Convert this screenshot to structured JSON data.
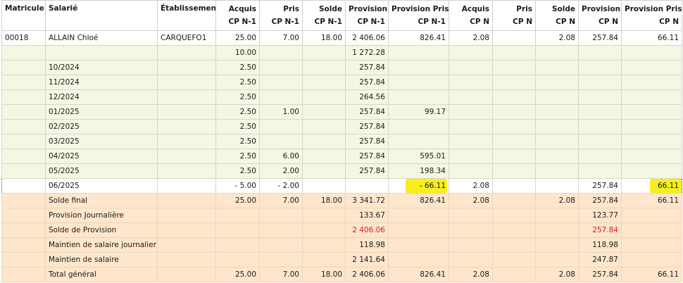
{
  "columns": [
    {
      "id": "matricule",
      "line1": "Matricule",
      "line2": ""
    },
    {
      "id": "salarie",
      "line1": "Salarié",
      "line2": ""
    },
    {
      "id": "etablissement",
      "line1": "Établissement",
      "line2": ""
    },
    {
      "id": "acquis_n1",
      "line1": "Acquis",
      "line2": "CP N-1"
    },
    {
      "id": "pris_n1",
      "line1": "Pris",
      "line2": "CP N-1"
    },
    {
      "id": "solde_n1",
      "line1": "Solde",
      "line2": "CP N-1"
    },
    {
      "id": "provision_n1",
      "line1": "Provision",
      "line2": "CP N-1"
    },
    {
      "id": "provision_prise_n1",
      "line1": "Provision Prise",
      "line2": "CP N-1"
    },
    {
      "id": "acquis_n",
      "line1": "Acquis",
      "line2": "CP N"
    },
    {
      "id": "pris_n",
      "line1": "Pris",
      "line2": "CP N"
    },
    {
      "id": "solde_n",
      "line1": "Solde",
      "line2": "CP N"
    },
    {
      "id": "provision_n",
      "line1": "Provision",
      "line2": "CP N"
    },
    {
      "id": "provision_prise_n",
      "line1": "Provision Prise",
      "line2": "CP N"
    }
  ],
  "rows": [
    {
      "type": "main",
      "cells": [
        "00018",
        "ALLAIN Chloé",
        "CARQUEFO1",
        "25.00",
        "7.00",
        "18.00",
        "2 406.06",
        "826.41",
        "2.08",
        "",
        "2.08",
        "257.84",
        "66.11"
      ]
    },
    {
      "type": "month",
      "cells": [
        "",
        "",
        "",
        "10.00",
        "",
        "",
        "1 272.28",
        "",
        "",
        "",
        "",
        "",
        ""
      ]
    },
    {
      "type": "month",
      "cells": [
        "",
        "10/2024",
        "",
        "2.50",
        "",
        "",
        "257.84",
        "",
        "",
        "",
        "",
        "",
        ""
      ]
    },
    {
      "type": "month",
      "cells": [
        "",
        "11/2024",
        "",
        "2.50",
        "",
        "",
        "257.84",
        "",
        "",
        "",
        "",
        "",
        ""
      ]
    },
    {
      "type": "month",
      "cells": [
        "",
        "12/2024",
        "",
        "2.50",
        "",
        "",
        "264.56",
        "",
        "",
        "",
        "",
        "",
        ""
      ]
    },
    {
      "type": "month",
      "cells": [
        "",
        "01/2025",
        "",
        "2.50",
        "1.00",
        "",
        "257.84",
        "99.17",
        "",
        "",
        "",
        "",
        ""
      ]
    },
    {
      "type": "month",
      "cells": [
        "",
        "02/2025",
        "",
        "2.50",
        "",
        "",
        "257.84",
        "",
        "",
        "",
        "",
        "",
        ""
      ]
    },
    {
      "type": "month",
      "cells": [
        "",
        "03/2025",
        "",
        "2.50",
        "",
        "",
        "257.84",
        "",
        "",
        "",
        "",
        "",
        ""
      ]
    },
    {
      "type": "month",
      "cells": [
        "",
        "04/2025",
        "",
        "2.50",
        "6.00",
        "",
        "257.84",
        "595.01",
        "",
        "",
        "",
        "",
        ""
      ]
    },
    {
      "type": "month",
      "cells": [
        "",
        "05/2025",
        "",
        "2.50",
        "2.00",
        "",
        "257.84",
        "198.34",
        "",
        "",
        "",
        "",
        ""
      ]
    },
    {
      "type": "current",
      "cells": [
        "",
        "06/2025",
        "",
        "- 5.00",
        "- 2.00",
        "",
        "",
        "- 66.11",
        "2.08",
        "",
        "",
        "257.84",
        "66.11"
      ]
    },
    {
      "type": "summary",
      "cells": [
        "",
        "Solde final",
        "",
        "25.00",
        "7.00",
        "18.00",
        "3 341.72",
        "826.41",
        "2.08",
        "",
        "2.08",
        "257.84",
        "66.11"
      ]
    },
    {
      "type": "summary",
      "cells": [
        "",
        "Provision Journalière",
        "",
        "",
        "",
        "",
        "133.67",
        "",
        "",
        "",
        "",
        "123.77",
        ""
      ]
    },
    {
      "type": "summary",
      "red": true,
      "cells": [
        "",
        "Solde de Provision",
        "",
        "",
        "",
        "",
        "2 406.06",
        "",
        "",
        "",
        "",
        "257.84",
        ""
      ]
    },
    {
      "type": "summary",
      "cells": [
        "",
        "Maintien de salaire journalier",
        "",
        "",
        "",
        "",
        "118.98",
        "",
        "",
        "",
        "",
        "118.98",
        ""
      ]
    },
    {
      "type": "summary",
      "cells": [
        "",
        "Maintien de salaire",
        "",
        "",
        "",
        "",
        "2 141.64",
        "",
        "",
        "",
        "",
        "247.87",
        ""
      ]
    },
    {
      "type": "summary",
      "cells": [
        "",
        "Total général",
        "",
        "25.00",
        "7.00",
        "18.00",
        "2 406.06",
        "826.41",
        "2.08",
        "",
        "2.08",
        "257.84",
        "66.11"
      ]
    }
  ],
  "highlight_color": "#f6ef1c",
  "red_color": "#e01b1b"
}
